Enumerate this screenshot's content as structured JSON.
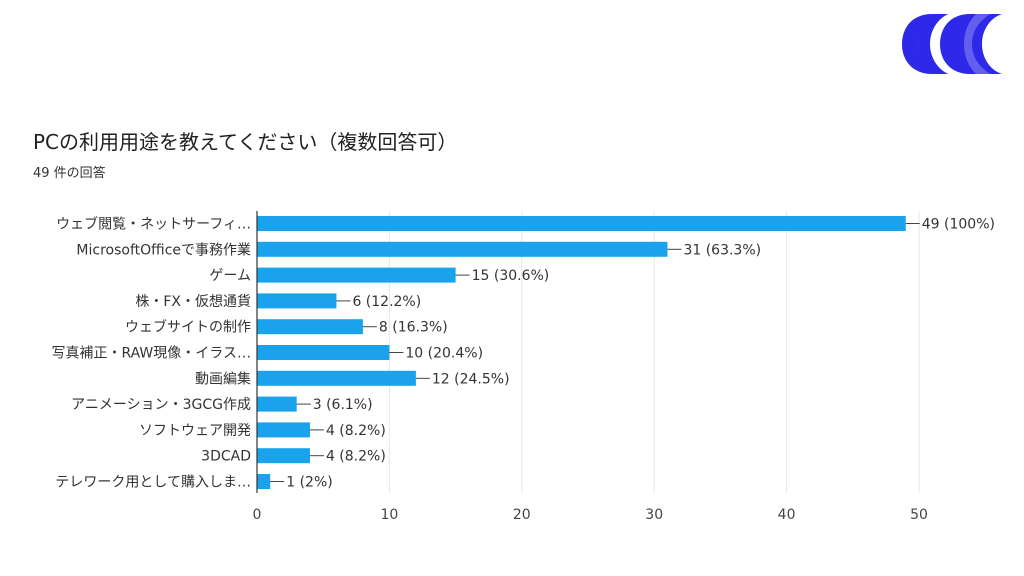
{
  "title": "PCの利用用途を教えてください（複数回答可）",
  "subtitle": "49 件の回答",
  "colors": {
    "bar": "#1aa3ec",
    "logo": "#2e28e8",
    "grid": "#e6e6e6",
    "axis": "#333333"
  },
  "chart_data": {
    "type": "bar",
    "orientation": "horizontal",
    "title": "PCの利用用途を教えてください（複数回答可）",
    "categories": [
      "ウェブ閲覧・ネットサーフィ…",
      "MicrosoftOfficeで事務作業",
      "ゲーム",
      "株・FX・仮想通貨",
      "ウェブサイトの制作",
      "写真補正・RAW現像・イラス…",
      "動画編集",
      "アニメーション・3GCG作成",
      "ソフトウェア開発",
      "3DCAD",
      "テレワーク用として購入しま…"
    ],
    "values": [
      49,
      31,
      15,
      6,
      8,
      10,
      12,
      3,
      4,
      4,
      1
    ],
    "value_labels": [
      "49 (100%)",
      "31 (63.3%)",
      "15 (30.6%)",
      "6 (12.2%)",
      "8 (16.3%)",
      "10 (20.4%)",
      "12 (24.5%)",
      "3 (6.1%)",
      "4 (8.2%)",
      "4 (8.2%)",
      "1 (2%)"
    ],
    "xticks": [
      0,
      10,
      20,
      30,
      40,
      50
    ],
    "xlim": [
      0,
      50
    ],
    "grid": true,
    "legend": "none"
  }
}
